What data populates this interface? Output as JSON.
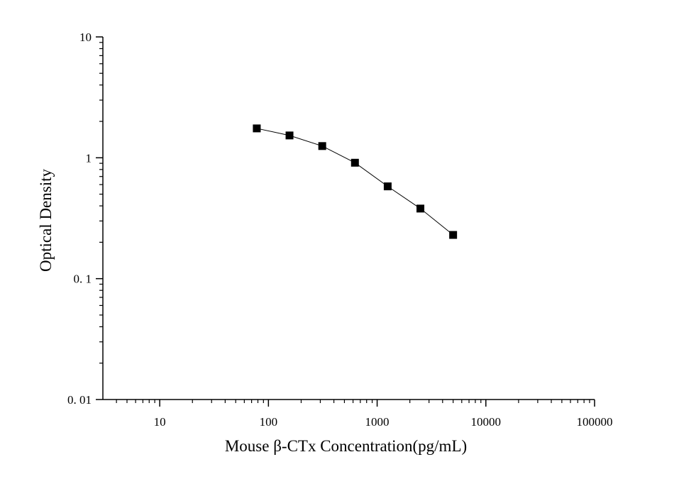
{
  "chart_data": {
    "type": "line",
    "title": "",
    "xlabel": "Mouse β-CTx Concentration(pg/mL)",
    "ylabel": "Optical Density",
    "x_scale": "log",
    "y_scale": "log",
    "xlim": [
      3,
      100000
    ],
    "ylim": [
      0.01,
      10
    ],
    "x_tick_values": [
      10,
      100,
      1000,
      10000,
      100000
    ],
    "x_tick_labels": [
      "10",
      "100",
      "1000",
      "10000",
      "100000"
    ],
    "y_tick_values": [
      0.01,
      0.1,
      1,
      10
    ],
    "y_tick_labels": [
      "0. 01",
      "0. 1",
      "1",
      "10"
    ],
    "grid": false,
    "legend": "none",
    "marker": "square",
    "color": "#000000",
    "series": [
      {
        "x": [
          78.125,
          156.25,
          312.5,
          625,
          1250,
          2500,
          5000
        ],
        "y": [
          1.75,
          1.53,
          1.25,
          0.91,
          0.58,
          0.38,
          0.23
        ]
      }
    ]
  }
}
